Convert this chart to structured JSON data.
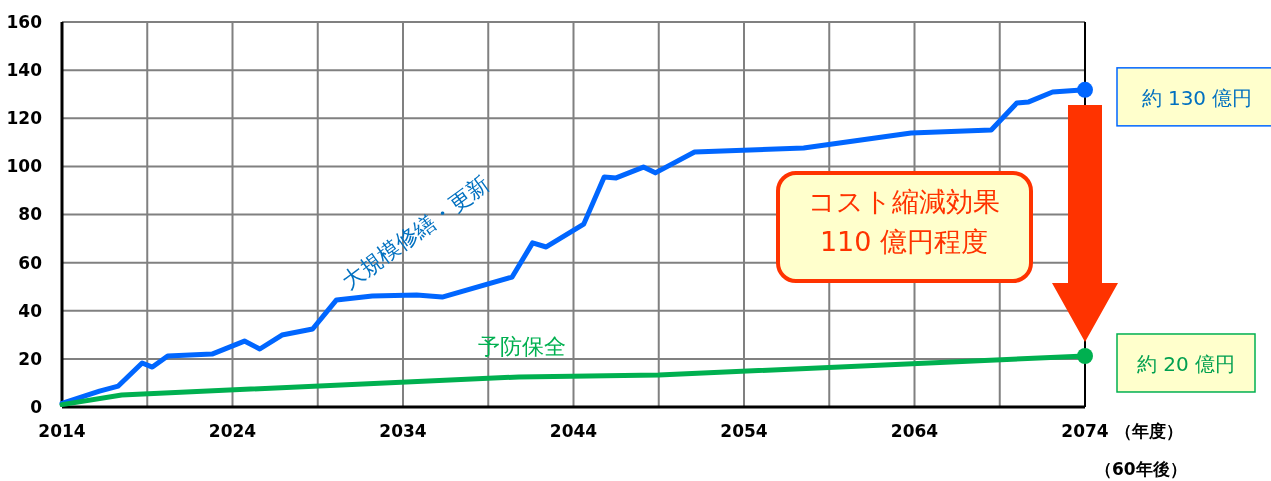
{
  "chart_data": {
    "type": "line",
    "xlabel": "（年度）",
    "xlim": [
      2014,
      2074
    ],
    "ylim": [
      0,
      160
    ],
    "xticks": [
      2014,
      {
        "value": 2019,
        "label": null
      },
      2024,
      {
        "value": 2029,
        "label": null
      },
      2034,
      {
        "value": 2039,
        "label": null
      },
      2044,
      {
        "value": 2049,
        "label": null
      },
      2054,
      {
        "value": 2059,
        "label": null
      },
      2064,
      {
        "value": 2069,
        "label": null
      },
      2074
    ],
    "yticks": [
      0,
      20,
      40,
      60,
      80,
      100,
      120,
      140,
      160
    ],
    "grid": true,
    "marker": "none",
    "line_style": "solid",
    "series": [
      {
        "name": "大規模修繕・更新",
        "color": "#0066ff",
        "x": [
          2014,
          2016.2,
          2017.3,
          2018.7,
          2019.3,
          2020.2,
          2022.8,
          2024.7,
          2025.6,
          2026.9,
          2028.7,
          2030.1,
          2032.2,
          2034.8,
          2036.3,
          2040.4,
          2041.6,
          2042.4,
          2044.6,
          2045.8,
          2046.5,
          2048.1,
          2048.8,
          2051.1,
          2057.5,
          2063.8,
          2068.5,
          2070,
          2070.7,
          2072.1,
          2074
        ],
        "values": [
          1.5,
          6.6,
          8.7,
          18.3,
          16.6,
          21.2,
          22,
          27.4,
          24.1,
          29.9,
          32.4,
          44.5,
          46.1,
          46.5,
          45.7,
          54,
          68.2,
          66.5,
          76,
          95.6,
          95.2,
          99.7,
          97.3,
          106,
          107.6,
          113.9,
          115.1,
          126.3,
          126.8,
          130.9,
          131.8
        ]
      },
      {
        "name": "予防保全",
        "color": "#00b050",
        "x": [
          2014,
          2017.5,
          2040.8,
          2049,
          2074
        ],
        "values": [
          1,
          5,
          12.5,
          13.3,
          21.2
        ]
      }
    ],
    "annotations": [
      {
        "text": "約 130 億円",
        "x": 2074,
        "y": 131.8
      },
      {
        "text": "約 20 億円",
        "x": 2074,
        "y": 21.2
      },
      "コスト縮減効果\n110 億円程度",
      "（60年後）"
    ]
  }
}
